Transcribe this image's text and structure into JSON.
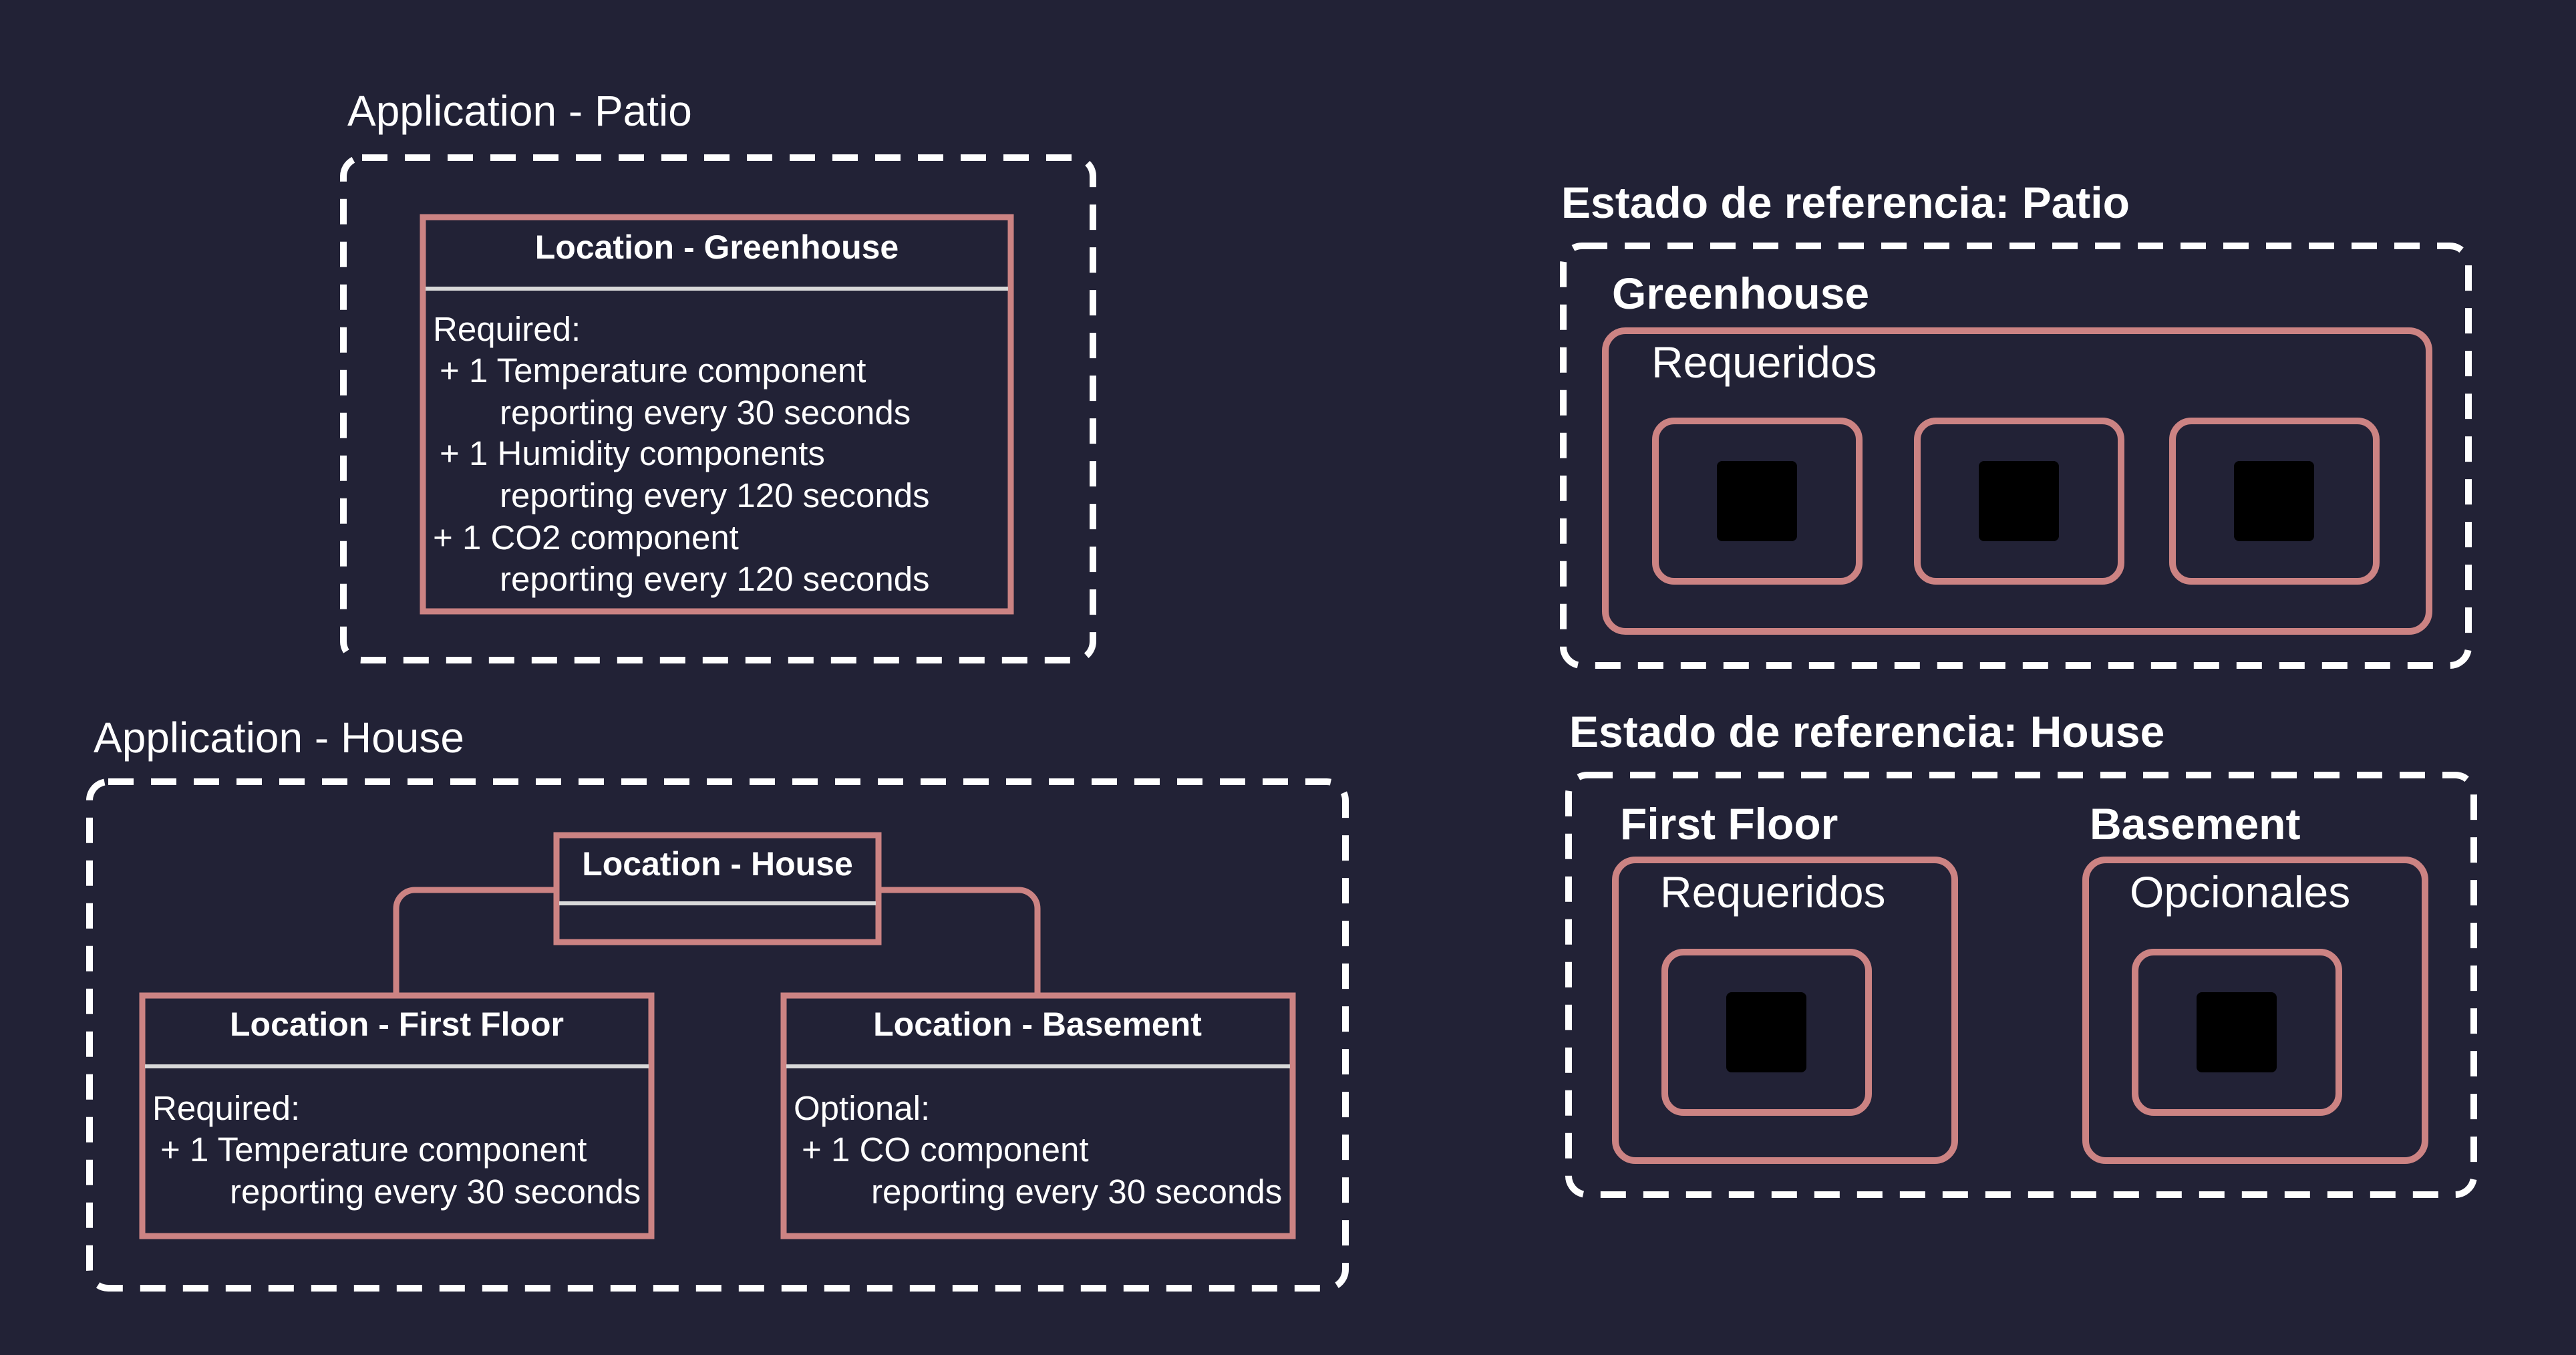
{
  "patio_app": {
    "title": "Application - Patio",
    "location_header": "Location - Greenhouse",
    "lines": [
      "Required:",
      " + 1 Temperature component",
      "reporting every 30 seconds",
      " + 1 Humidity components",
      "reporting every 120 seconds",
      "+ 1  CO2 component",
      "reporting every 120 seconds"
    ]
  },
  "house_app": {
    "title": "Application - House",
    "root_header": "Location - House",
    "first_floor": {
      "header": "Location - First Floor",
      "lines": [
        "Required:",
        " + 1  Temperature component",
        "reporting every 30 seconds"
      ]
    },
    "basement": {
      "header": "Location - Basement",
      "lines": [
        "Optional:",
        " + 1  CO component",
        "reporting every 30 seconds"
      ]
    }
  },
  "ref_patio": {
    "title": "Estado de referencia: Patio",
    "location": "Greenhouse",
    "group_label": "Requeridos",
    "icons": [
      "thermometer-chip-icon",
      "humidity-chip-icon",
      "co2-chip-icon"
    ]
  },
  "ref_house": {
    "title": "Estado de referencia: House",
    "first_floor": {
      "location": "First Floor",
      "group_label": "Requeridos",
      "icons": [
        "thermometer-chip-icon"
      ]
    },
    "basement": {
      "location": "Basement",
      "group_label": "Opcionales",
      "icons": [
        "co2-chip-icon"
      ]
    }
  },
  "colors": {
    "background": "#222236",
    "accent": "#cc8383",
    "text": "#ffffff"
  }
}
